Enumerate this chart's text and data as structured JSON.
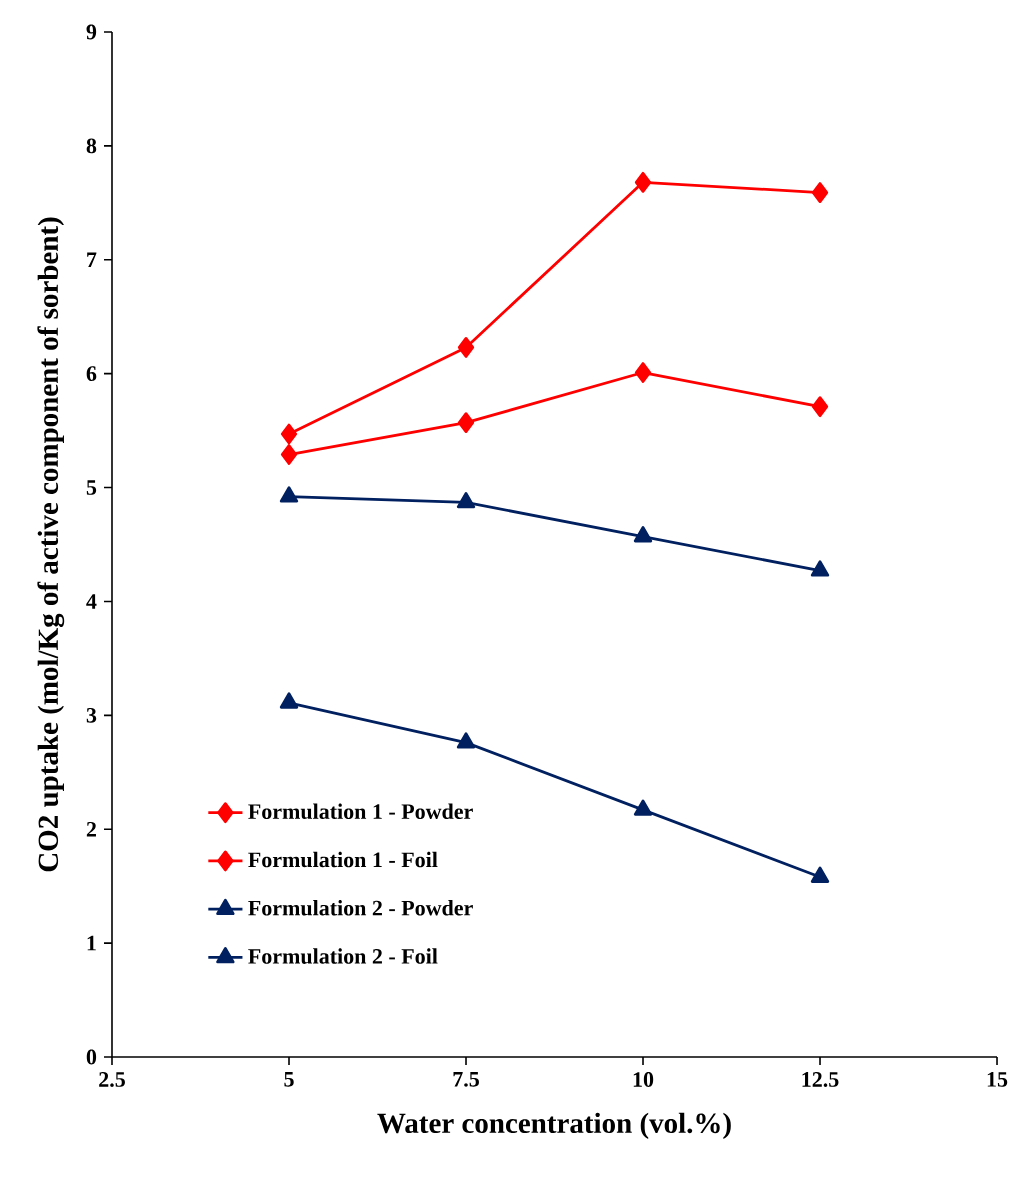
{
  "chart_data": {
    "type": "line",
    "xlabel": "Water concentration (vol.%)",
    "ylabel": "CO2 uptake (mol/Kg of active component of sorbent)",
    "x": [
      5,
      7.5,
      10,
      12.5
    ],
    "series": [
      {
        "name": "Formulation 1 - Powder",
        "color": "#ff0000",
        "marker": "diamond",
        "values": [
          5.29,
          5.57,
          6.01,
          5.71
        ]
      },
      {
        "name": "Formulation 1 - Foil",
        "color": "#ff0000",
        "marker": "diamond",
        "values": [
          5.47,
          6.23,
          7.68,
          7.59
        ]
      },
      {
        "name": "Formulation 2 - Powder",
        "color": "#002060",
        "marker": "triangle",
        "values": [
          3.11,
          2.76,
          2.17,
          1.58
        ]
      },
      {
        "name": "Formulation 2 - Foil",
        "color": "#002060",
        "marker": "triangle",
        "values": [
          4.92,
          4.87,
          4.57,
          4.27
        ]
      }
    ],
    "xlim": [
      2.5,
      15
    ],
    "xticks": [
      2.5,
      5,
      7.5,
      10,
      12.5,
      15
    ],
    "ylim": [
      0,
      9
    ],
    "yticks": [
      0,
      1,
      2,
      3,
      4,
      5,
      6,
      7,
      8,
      9
    ],
    "grid": false,
    "legend": "bottom left",
    "line_style": "solid"
  }
}
